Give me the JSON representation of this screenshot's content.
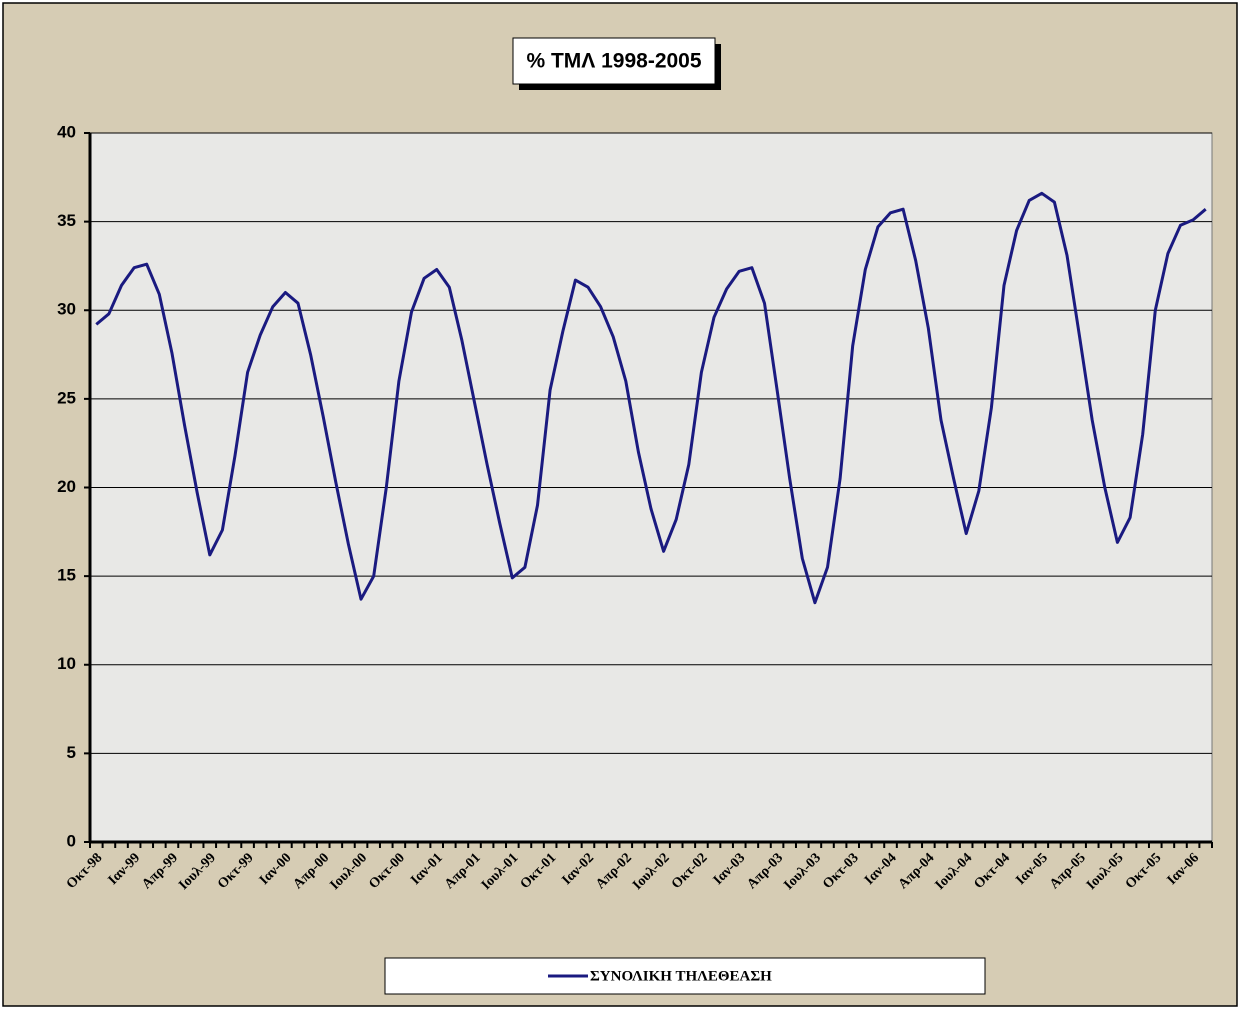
{
  "chart_data": {
    "type": "line",
    "title": "% ΤΜΛ 1998-2005",
    "categories": [
      "Οκτ-98",
      null,
      null,
      "Ιαν-99",
      null,
      null,
      "Απρ-99",
      null,
      null,
      "Ιουλ-99",
      null,
      null,
      "Οκτ-99",
      null,
      null,
      "Ιαν-00",
      null,
      null,
      "Απρ-00",
      null,
      null,
      "Ιουλ-00",
      null,
      null,
      "Οκτ-00",
      null,
      null,
      "Ιαν-01",
      null,
      null,
      "Απρ-01",
      null,
      null,
      "Ιουλ-01",
      null,
      null,
      "Οκτ-01",
      null,
      null,
      "Ιαν-02",
      null,
      null,
      "Απρ-02",
      null,
      null,
      "Ιουλ-02",
      null,
      null,
      "Οκτ-02",
      null,
      null,
      "Ιαν-03",
      null,
      null,
      "Απρ-03",
      null,
      null,
      "Ιουλ-03",
      null,
      null,
      "Οκτ-03",
      null,
      null,
      "Ιαν-04",
      null,
      null,
      "Απρ-04",
      null,
      null,
      "Ιουλ-04",
      null,
      null,
      "Οκτ-04",
      null,
      null,
      "Ιαν-05",
      null,
      null,
      "Απρ-05",
      null,
      null,
      "Ιουλ-05",
      null,
      null,
      "Οκτ-05",
      null,
      null,
      "Ιαν-06",
      null
    ],
    "series": [
      {
        "name": "ΣΥΝΟΛΙΚΗ ΤΗΛΕΘΕΑΣΗ",
        "color": "#1a1a80",
        "values": [
          29.2,
          29.8,
          31.4,
          32.4,
          32.6,
          30.9,
          27.6,
          23.5,
          19.7,
          16.2,
          17.6,
          21.8,
          26.5,
          28.6,
          30.2,
          31.0,
          30.4,
          27.5,
          24.0,
          20.3,
          16.8,
          13.7,
          15.0,
          20.0,
          26.0,
          29.9,
          31.8,
          32.3,
          31.3,
          28.3,
          24.8,
          21.3,
          18.0,
          14.9,
          15.5,
          19.0,
          25.5,
          28.8,
          31.7,
          31.3,
          30.2,
          28.5,
          26.0,
          22.0,
          18.8,
          16.4,
          18.2,
          21.3,
          26.5,
          29.6,
          31.2,
          32.2,
          32.4,
          30.4,
          25.5,
          20.5,
          16.0,
          13.5,
          15.5,
          20.5,
          28.0,
          32.3,
          34.7,
          35.5,
          35.7,
          32.8,
          29.0,
          23.8,
          20.5,
          17.4,
          19.8,
          24.5,
          31.4,
          34.5,
          36.2,
          36.6,
          36.1,
          33.1,
          28.5,
          23.8,
          20.0,
          16.9,
          18.3,
          23.0,
          30.0,
          33.2,
          34.8,
          35.1,
          35.7
        ]
      }
    ],
    "ylim": [
      0,
      40
    ],
    "yticks": [
      0,
      5,
      10,
      15,
      20,
      25,
      30,
      35,
      40
    ],
    "grid": true,
    "legend": "bottom"
  }
}
